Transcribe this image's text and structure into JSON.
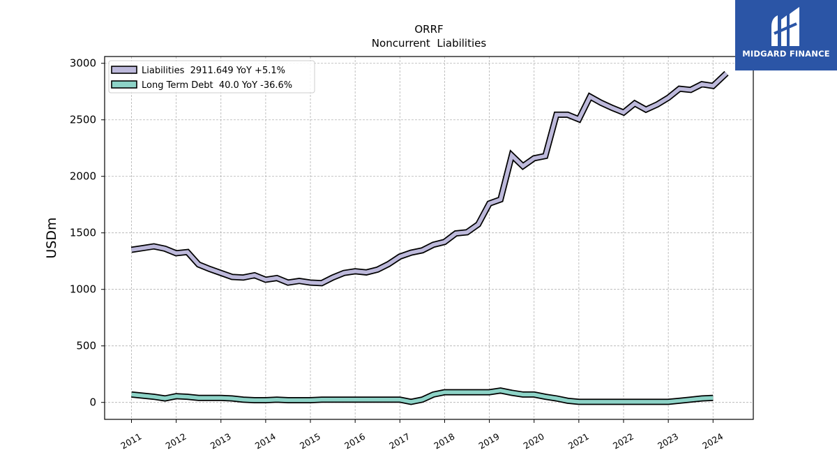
{
  "brand": {
    "name": "MIDGARD FINANCE",
    "logo_color": "#2b55a6",
    "icon": "midgard-finance-logo-icon"
  },
  "chart_data": {
    "type": "line",
    "title": "ORRF",
    "subtitle": "Noncurrent  Liabilities",
    "ylabel": "USDm",
    "xlabel": "",
    "ylim": [
      -150,
      3060
    ],
    "xlim": [
      2010.4,
      2024.9
    ],
    "yticks": [
      0,
      500,
      1000,
      1500,
      2000,
      2500,
      3000
    ],
    "xticks": [
      "2011",
      "2012",
      "2013",
      "2014",
      "2015",
      "2016",
      "2017",
      "2018",
      "2019",
      "2020",
      "2021",
      "2022",
      "2023",
      "2024"
    ],
    "grid": true,
    "legend_position": "top-left",
    "series": [
      {
        "name": "Liabilities",
        "legend_label": "Liabilities  2911.649 YoY +5.1%",
        "color": "#bdb9db",
        "points": [
          [
            2011.0,
            1350
          ],
          [
            2011.25,
            1365
          ],
          [
            2011.5,
            1380
          ],
          [
            2011.75,
            1360
          ],
          [
            2012.0,
            1320
          ],
          [
            2012.25,
            1330
          ],
          [
            2012.5,
            1220
          ],
          [
            2012.75,
            1180
          ],
          [
            2013.0,
            1145
          ],
          [
            2013.25,
            1110
          ],
          [
            2013.5,
            1105
          ],
          [
            2013.75,
            1125
          ],
          [
            2014.0,
            1085
          ],
          [
            2014.25,
            1100
          ],
          [
            2014.5,
            1060
          ],
          [
            2014.75,
            1075
          ],
          [
            2015.0,
            1060
          ],
          [
            2015.25,
            1055
          ],
          [
            2015.5,
            1105
          ],
          [
            2015.75,
            1145
          ],
          [
            2016.0,
            1160
          ],
          [
            2016.25,
            1150
          ],
          [
            2016.5,
            1175
          ],
          [
            2016.75,
            1225
          ],
          [
            2017.0,
            1290
          ],
          [
            2017.25,
            1325
          ],
          [
            2017.5,
            1345
          ],
          [
            2017.75,
            1395
          ],
          [
            2018.0,
            1420
          ],
          [
            2018.25,
            1495
          ],
          [
            2018.5,
            1505
          ],
          [
            2018.75,
            1575
          ],
          [
            2019.0,
            1760
          ],
          [
            2019.25,
            1795
          ],
          [
            2019.5,
            2185
          ],
          [
            2019.75,
            2090
          ],
          [
            2020.0,
            2160
          ],
          [
            2020.25,
            2180
          ],
          [
            2020.5,
            2545
          ],
          [
            2020.75,
            2545
          ],
          [
            2021.0,
            2505
          ],
          [
            2021.25,
            2705
          ],
          [
            2021.5,
            2650
          ],
          [
            2021.75,
            2605
          ],
          [
            2022.0,
            2565
          ],
          [
            2022.25,
            2645
          ],
          [
            2022.5,
            2590
          ],
          [
            2022.75,
            2635
          ],
          [
            2023.0,
            2695
          ],
          [
            2023.25,
            2775
          ],
          [
            2023.5,
            2765
          ],
          [
            2023.75,
            2815
          ],
          [
            2024.0,
            2800
          ],
          [
            2024.3,
            2912
          ]
        ]
      },
      {
        "name": "Long Term Debt",
        "legend_label": "Long Term Debt  40.0 YoY -36.6%",
        "color": "#8dd3c7",
        "points": [
          [
            2011.0,
            70
          ],
          [
            2011.25,
            60
          ],
          [
            2011.5,
            50
          ],
          [
            2011.75,
            35
          ],
          [
            2012.0,
            55
          ],
          [
            2012.25,
            50
          ],
          [
            2012.5,
            40
          ],
          [
            2012.75,
            40
          ],
          [
            2013.0,
            40
          ],
          [
            2013.25,
            35
          ],
          [
            2013.5,
            25
          ],
          [
            2013.75,
            20
          ],
          [
            2014.0,
            20
          ],
          [
            2014.25,
            25
          ],
          [
            2014.5,
            20
          ],
          [
            2014.75,
            20
          ],
          [
            2015.0,
            20
          ],
          [
            2015.25,
            25
          ],
          [
            2015.5,
            25
          ],
          [
            2015.75,
            25
          ],
          [
            2016.0,
            25
          ],
          [
            2016.25,
            25
          ],
          [
            2016.5,
            25
          ],
          [
            2016.75,
            25
          ],
          [
            2017.0,
            25
          ],
          [
            2017.25,
            5
          ],
          [
            2017.5,
            25
          ],
          [
            2017.75,
            70
          ],
          [
            2018.0,
            90
          ],
          [
            2018.25,
            90
          ],
          [
            2018.5,
            90
          ],
          [
            2018.75,
            90
          ],
          [
            2019.0,
            90
          ],
          [
            2019.25,
            105
          ],
          [
            2019.5,
            85
          ],
          [
            2019.75,
            70
          ],
          [
            2020.0,
            70
          ],
          [
            2020.25,
            50
          ],
          [
            2020.5,
            35
          ],
          [
            2020.75,
            15
          ],
          [
            2021.0,
            5
          ],
          [
            2021.25,
            5
          ],
          [
            2021.5,
            5
          ],
          [
            2021.75,
            5
          ],
          [
            2022.0,
            5
          ],
          [
            2022.25,
            5
          ],
          [
            2022.5,
            5
          ],
          [
            2022.75,
            5
          ],
          [
            2023.0,
            5
          ],
          [
            2023.25,
            15
          ],
          [
            2023.5,
            25
          ],
          [
            2023.75,
            35
          ],
          [
            2024.0,
            40
          ]
        ]
      }
    ]
  }
}
